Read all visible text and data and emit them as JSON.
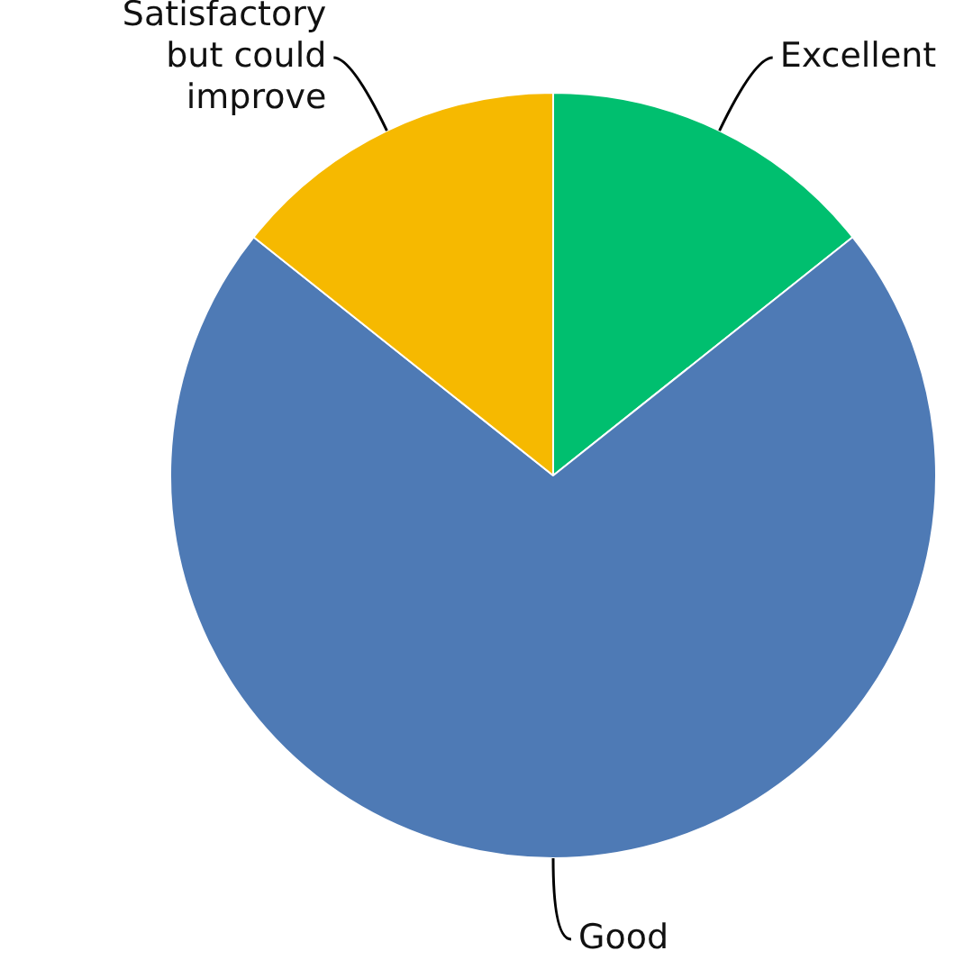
{
  "chart_data": {
    "type": "pie",
    "categories": [
      "Excellent",
      "Good",
      "Satisfactory but could improve"
    ],
    "values": [
      14.3,
      71.4,
      14.3
    ],
    "colors": [
      "#00bf6f",
      "#4e7ab5",
      "#f6b900"
    ],
    "legend": false
  }
}
